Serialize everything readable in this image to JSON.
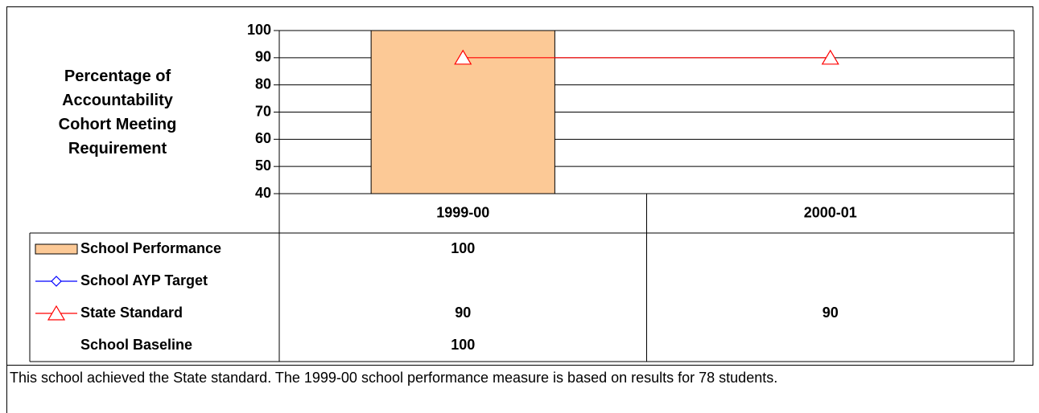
{
  "chart_data": {
    "type": "bar",
    "y_label": "Percentage of Accountability Cohort Meeting Requirement",
    "categories": [
      "1999-00",
      "2000-01"
    ],
    "series": [
      {
        "name": "School Performance",
        "type": "bar",
        "color": "#fcc996",
        "values": [
          100,
          null
        ]
      },
      {
        "name": "School AYP Target",
        "type": "line",
        "marker": "diamond",
        "color": "#0000ff",
        "values": [
          null,
          null
        ]
      },
      {
        "name": "State Standard",
        "type": "line",
        "marker": "triangle",
        "color": "#ff0000",
        "values": [
          90,
          90
        ]
      },
      {
        "name": "School Baseline",
        "type": "none",
        "color": "#000000",
        "values": [
          100,
          null
        ]
      }
    ],
    "ylim": [
      40,
      100
    ],
    "yticks": [
      40,
      50,
      60,
      70,
      80,
      90,
      100
    ],
    "grid": true,
    "footnote": "This school achieved the State standard. The 1999-00 school performance measure is based on results for 78 students."
  }
}
